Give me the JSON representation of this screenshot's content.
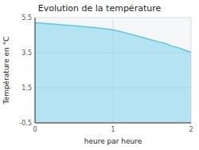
{
  "chart_data": {
    "type": "area",
    "title": "Evolution de la température",
    "x_label": "heure par heure",
    "y_label": "Température en °C",
    "x": [
      0.0,
      0.083,
      0.167,
      0.25,
      0.333,
      0.417,
      0.5,
      0.583,
      0.667,
      0.75,
      0.833,
      0.917,
      1.0,
      1.083,
      1.167,
      1.25,
      1.333,
      1.417,
      1.5,
      1.583,
      1.667,
      1.75,
      1.833,
      1.917,
      2.0
    ],
    "values": [
      5.2,
      5.18,
      5.15,
      5.12,
      5.09,
      5.06,
      5.03,
      5.0,
      4.97,
      4.93,
      4.89,
      4.85,
      4.8,
      4.72,
      4.62,
      4.52,
      4.42,
      4.32,
      4.22,
      4.12,
      4.02,
      3.88,
      3.78,
      3.65,
      3.52
    ],
    "color": "#5bc8e8",
    "xlim": [
      0,
      2
    ],
    "ylim": [
      -0.5,
      5.5
    ],
    "xticks": [
      0,
      1,
      2
    ],
    "yticks": [
      -0.5,
      1.5,
      3.5,
      5.5
    ],
    "grid": true
  }
}
